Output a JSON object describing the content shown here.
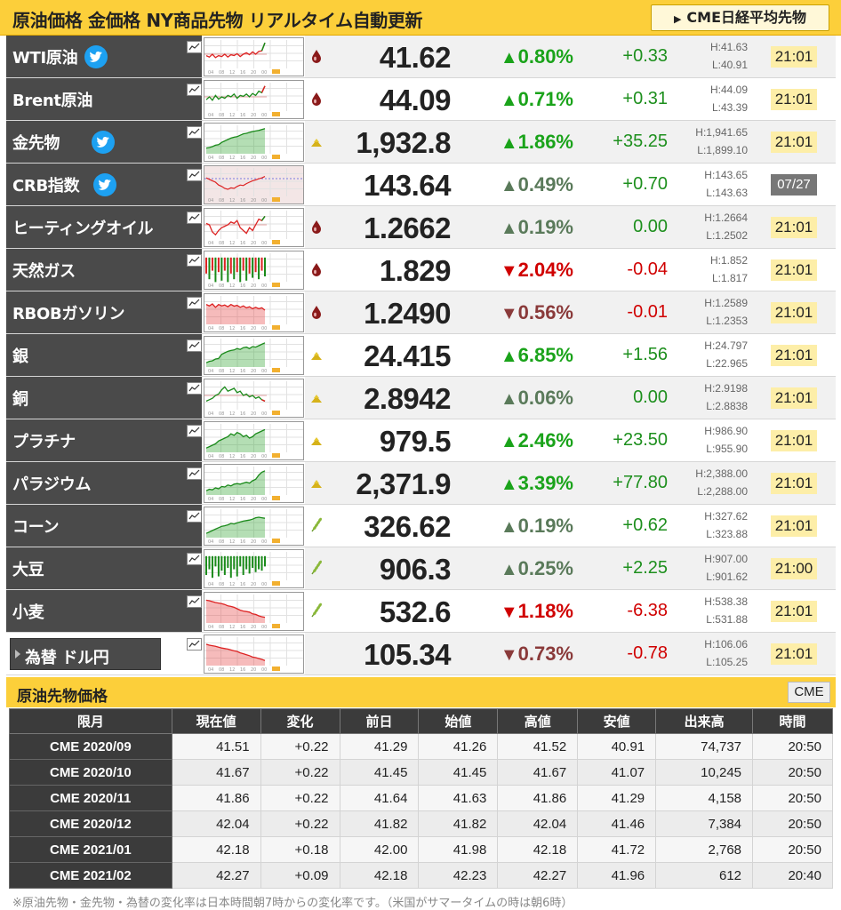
{
  "header": {
    "title": "原油価格 金価格 NY商品先物 リアルタイム自動更新",
    "nikkei_button": "CME日経平均先物"
  },
  "commodities": [
    {
      "name": "WTI原油",
      "twitter": true,
      "category": "oil",
      "price": "41.62",
      "dir": "up",
      "pct": "0.80%",
      "chg": "+0.33",
      "high": "H:41.63",
      "low": "L:40.91",
      "time": "21:01",
      "pct_tone": "up-strong",
      "spark": {
        "kind": "line",
        "color": "#d22",
        "up": "#1a8a1a",
        "pts": [
          0.55,
          0.6,
          0.5,
          0.62,
          0.55,
          0.58,
          0.5,
          0.6,
          0.52,
          0.55,
          0.48,
          0.58,
          0.5,
          0.45,
          0.52,
          0.42,
          0.5,
          0.4,
          0.38,
          0.1
        ]
      }
    },
    {
      "name": "Brent原油",
      "twitter": false,
      "category": "oil",
      "price": "44.09",
      "dir": "up",
      "pct": "0.71%",
      "chg": "+0.31",
      "high": "H:44.09",
      "low": "L:43.39",
      "time": "21:01",
      "pct_tone": "up-strong",
      "spark": {
        "kind": "line",
        "color": "#1a8a1a",
        "up": "#d22",
        "pts": [
          0.6,
          0.5,
          0.62,
          0.45,
          0.58,
          0.5,
          0.55,
          0.45,
          0.5,
          0.4,
          0.55,
          0.45,
          0.48,
          0.4,
          0.5,
          0.38,
          0.45,
          0.3,
          0.35,
          0.12
        ]
      }
    },
    {
      "name": "金先物",
      "twitter": true,
      "category": "metal",
      "price": "1,932.8",
      "dir": "up",
      "pct": "1.86%",
      "chg": "+35.25",
      "high": "H:1,941.65",
      "low": "L:1,899.10",
      "time": "21:01",
      "pct_tone": "up-strong",
      "spark": {
        "kind": "area",
        "color": "#1a8a1a",
        "pts": [
          0.8,
          0.78,
          0.75,
          0.7,
          0.68,
          0.6,
          0.55,
          0.5,
          0.45,
          0.42,
          0.4,
          0.35,
          0.3,
          0.28,
          0.25,
          0.22,
          0.2,
          0.18,
          0.15,
          0.12
        ]
      }
    },
    {
      "name": "CRB指数",
      "twitter": true,
      "category": "",
      "price": "143.64",
      "dir": "up",
      "pct": "0.49%",
      "chg": "+0.70",
      "high": "H:143.65",
      "low": "L:143.63",
      "time": "07/27",
      "time_old": true,
      "pct_tone": "up-weak",
      "spark": {
        "kind": "red",
        "color": "#d22",
        "pts": [
          0.35,
          0.4,
          0.45,
          0.5,
          0.6,
          0.65,
          0.72,
          0.75,
          0.7,
          0.72,
          0.65,
          0.6,
          0.62,
          0.55,
          0.5,
          0.45,
          0.42,
          0.38,
          0.35,
          0.3
        ]
      }
    },
    {
      "name": "ヒーティングオイル",
      "twitter": false,
      "category": "oil",
      "price": "1.2662",
      "dir": "up",
      "pct": "0.19%",
      "chg": "0.00",
      "high": "H:1.2664",
      "low": "L:1.2502",
      "time": "21:01",
      "pct_tone": "up-weak",
      "chg_flat": true,
      "spark": {
        "kind": "line",
        "color": "#d22",
        "up": "#1a8a1a",
        "pts": [
          0.45,
          0.5,
          0.75,
          0.85,
          0.7,
          0.6,
          0.55,
          0.5,
          0.4,
          0.45,
          0.35,
          0.6,
          0.7,
          0.8,
          0.6,
          0.7,
          0.5,
          0.3,
          0.35,
          0.2
        ]
      }
    },
    {
      "name": "天然ガス",
      "twitter": false,
      "category": "oil",
      "price": "1.829",
      "dir": "down",
      "pct": "2.04%",
      "chg": "-0.04",
      "high": "H:1.852",
      "low": "L:1.817",
      "time": "21:01",
      "pct_tone": "down-strong",
      "spark": {
        "kind": "noise",
        "color": "#1a8a1a",
        "down": "#d22",
        "pts": [
          0.4,
          0.6,
          0.3,
          0.7,
          0.35,
          0.65,
          0.3,
          0.7,
          0.4,
          0.6,
          0.35,
          0.7,
          0.3,
          0.65,
          0.4,
          0.55,
          0.35,
          0.6,
          0.3,
          0.5
        ]
      }
    },
    {
      "name": "RBOBガソリン",
      "twitter": false,
      "category": "oil",
      "price": "1.2490",
      "dir": "down",
      "pct": "0.56%",
      "chg": "-0.01",
      "high": "H:1.2589",
      "low": "L:1.2353",
      "time": "21:01",
      "pct_tone": "down-weak",
      "spark": {
        "kind": "redarea",
        "color": "#d22",
        "pts": [
          0.3,
          0.35,
          0.28,
          0.4,
          0.3,
          0.35,
          0.32,
          0.38,
          0.3,
          0.36,
          0.33,
          0.4,
          0.35,
          0.42,
          0.38,
          0.45,
          0.4,
          0.45,
          0.42,
          0.5
        ]
      }
    },
    {
      "name": "銀",
      "twitter": false,
      "category": "metal",
      "price": "24.415",
      "dir": "up",
      "pct": "6.85%",
      "chg": "+1.56",
      "high": "H:24.797",
      "low": "L:22.965",
      "time": "21:01",
      "pct_tone": "up-strong",
      "spark": {
        "kind": "area",
        "color": "#1a8a1a",
        "pts": [
          0.85,
          0.8,
          0.78,
          0.72,
          0.7,
          0.55,
          0.5,
          0.45,
          0.42,
          0.4,
          0.35,
          0.38,
          0.32,
          0.3,
          0.35,
          0.28,
          0.3,
          0.25,
          0.2,
          0.15
        ]
      }
    },
    {
      "name": "銅",
      "twitter": false,
      "category": "metal",
      "price": "2.8942",
      "dir": "up",
      "pct": "0.06%",
      "chg": "0.00",
      "high": "H:2.9198",
      "low": "L:2.8838",
      "time": "21:01",
      "pct_tone": "up-weak",
      "chg_flat": true,
      "spark": {
        "kind": "line",
        "color": "#1a8a1a",
        "up": "#d22",
        "pts": [
          0.7,
          0.65,
          0.6,
          0.5,
          0.45,
          0.3,
          0.2,
          0.35,
          0.3,
          0.25,
          0.4,
          0.35,
          0.5,
          0.45,
          0.55,
          0.5,
          0.6,
          0.55,
          0.65,
          0.7
        ]
      }
    },
    {
      "name": "プラチナ",
      "twitter": false,
      "category": "metal",
      "price": "979.5",
      "dir": "up",
      "pct": "2.46%",
      "chg": "+23.50",
      "high": "H:986.90",
      "low": "L:955.90",
      "time": "21:01",
      "pct_tone": "up-strong",
      "spark": {
        "kind": "area",
        "color": "#1a8a1a",
        "pts": [
          0.85,
          0.8,
          0.75,
          0.7,
          0.6,
          0.55,
          0.5,
          0.45,
          0.35,
          0.4,
          0.3,
          0.35,
          0.45,
          0.4,
          0.5,
          0.45,
          0.35,
          0.3,
          0.25,
          0.2
        ]
      }
    },
    {
      "name": "パラジウム",
      "twitter": false,
      "category": "metal",
      "price": "2,371.9",
      "dir": "up",
      "pct": "3.39%",
      "chg": "+77.80",
      "high": "H:2,388.00",
      "low": "L:2,288.00",
      "time": "21:01",
      "pct_tone": "up-strong",
      "spark": {
        "kind": "area",
        "color": "#1a8a1a",
        "pts": [
          0.85,
          0.8,
          0.82,
          0.75,
          0.78,
          0.7,
          0.72,
          0.65,
          0.68,
          0.62,
          0.6,
          0.62,
          0.58,
          0.55,
          0.58,
          0.5,
          0.45,
          0.3,
          0.2,
          0.15
        ]
      }
    },
    {
      "name": "コーン",
      "twitter": false,
      "category": "grain",
      "price": "326.62",
      "dir": "up",
      "pct": "0.19%",
      "chg": "+0.62",
      "high": "H:327.62",
      "low": "L:323.88",
      "time": "21:01",
      "pct_tone": "up-weak",
      "spark": {
        "kind": "area",
        "color": "#1a8a1a",
        "pts": [
          0.85,
          0.8,
          0.75,
          0.7,
          0.65,
          0.6,
          0.58,
          0.55,
          0.5,
          0.52,
          0.48,
          0.45,
          0.42,
          0.4,
          0.38,
          0.35,
          0.3,
          0.28,
          0.3,
          0.32
        ]
      }
    },
    {
      "name": "大豆",
      "twitter": false,
      "category": "grain",
      "price": "906.3",
      "dir": "up",
      "pct": "0.25%",
      "chg": "+2.25",
      "high": "H:907.00",
      "low": "L:901.62",
      "time": "21:00",
      "pct_tone": "up-weak",
      "spark": {
        "kind": "noise",
        "color": "#1a8a1a",
        "down": "#1a8a1a",
        "pts": [
          0.5,
          0.3,
          0.6,
          0.2,
          0.55,
          0.35,
          0.5,
          0.25,
          0.6,
          0.3,
          0.55,
          0.2,
          0.5,
          0.3,
          0.45,
          0.25,
          0.4,
          0.3,
          0.35,
          0.2
        ]
      }
    },
    {
      "name": "小麦",
      "twitter": false,
      "category": "grain",
      "price": "532.6",
      "dir": "down",
      "pct": "1.18%",
      "chg": "-6.38",
      "high": "H:538.38",
      "low": "L:531.88",
      "time": "21:01",
      "pct_tone": "down-strong",
      "spark": {
        "kind": "redarea",
        "color": "#d22",
        "pts": [
          0.2,
          0.22,
          0.25,
          0.28,
          0.3,
          0.32,
          0.35,
          0.4,
          0.42,
          0.45,
          0.5,
          0.55,
          0.58,
          0.6,
          0.62,
          0.68,
          0.7,
          0.75,
          0.78,
          0.8
        ]
      }
    },
    {
      "name": "為替 ドル円",
      "twitter": false,
      "category": "",
      "fx": true,
      "price": "105.34",
      "dir": "down",
      "pct": "0.73%",
      "chg": "-0.78",
      "high": "H:106.06",
      "low": "L:105.25",
      "time": "21:01",
      "pct_tone": "down-weak",
      "spark": {
        "kind": "redarea",
        "color": "#d22",
        "pts": [
          0.25,
          0.28,
          0.3,
          0.32,
          0.35,
          0.38,
          0.4,
          0.42,
          0.45,
          0.48,
          0.5,
          0.55,
          0.58,
          0.62,
          0.65,
          0.7,
          0.72,
          0.75,
          0.78,
          0.82
        ]
      }
    }
  ],
  "crude_section": {
    "title": "原油先物価格",
    "button": "CME",
    "columns": [
      "限月",
      "現在値",
      "変化",
      "前日",
      "始値",
      "高値",
      "安値",
      "出来高",
      "時間"
    ],
    "rows": [
      [
        "CME 2020/09",
        "41.51",
        "+0.22",
        "41.29",
        "41.26",
        "41.52",
        "40.91",
        "74,737",
        "20:50"
      ],
      [
        "CME 2020/10",
        "41.67",
        "+0.22",
        "41.45",
        "41.45",
        "41.67",
        "41.07",
        "10,245",
        "20:50"
      ],
      [
        "CME 2020/11",
        "41.86",
        "+0.22",
        "41.64",
        "41.63",
        "41.86",
        "41.29",
        "4,158",
        "20:50"
      ],
      [
        "CME 2020/12",
        "42.04",
        "+0.22",
        "41.82",
        "41.82",
        "42.04",
        "41.46",
        "7,384",
        "20:50"
      ],
      [
        "CME 2021/01",
        "42.18",
        "+0.18",
        "42.00",
        "41.98",
        "42.18",
        "41.72",
        "2,768",
        "20:50"
      ],
      [
        "CME 2021/02",
        "42.27",
        "+0.09",
        "42.18",
        "42.23",
        "42.27",
        "41.96",
        "612",
        "20:40"
      ]
    ]
  },
  "footnote": "※原油先物・金先物・為替の変化率は日本時間朝7時からの変化率です。（米国がサマータイムの時は朝6時）",
  "colors": {
    "accent": "#fccf3a",
    "up": "#1aa31a",
    "down": "#d00000",
    "dark": "#4a4a4a"
  }
}
